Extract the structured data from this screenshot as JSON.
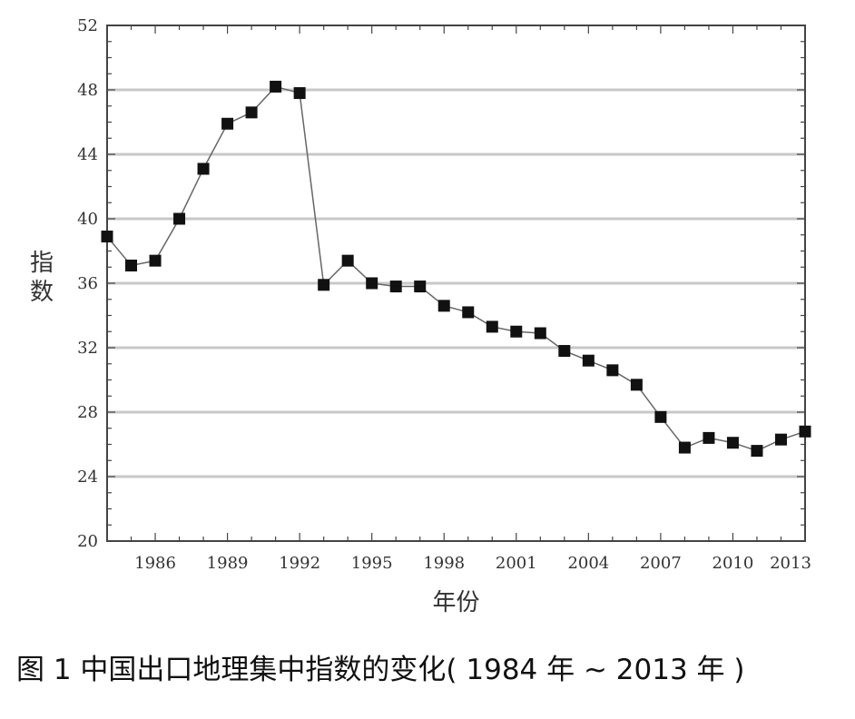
{
  "caption": "图 1  中国出口地理集中指数的变化( 1984 年 ~ 2013 年 )",
  "chart_data": {
    "type": "line",
    "xlabel": "年份",
    "ylabel": "指数",
    "xlim": [
      1984,
      2013
    ],
    "ylim": [
      20,
      52
    ],
    "x_ticks": [
      1986,
      1989,
      1992,
      1995,
      1998,
      2001,
      2004,
      2007,
      2010,
      2013
    ],
    "y_ticks": [
      20,
      24,
      28,
      32,
      36,
      40,
      44,
      48,
      52
    ],
    "grid": "horizontal",
    "marker": "square",
    "line_color": "#666666",
    "marker_color": "#111111",
    "series": [
      {
        "x": [
          1984,
          1985,
          1986,
          1987,
          1988,
          1989,
          1990,
          1991,
          1992,
          1993,
          1994,
          1995,
          1996,
          1997,
          1998,
          1999,
          2000,
          2001,
          2002,
          2003,
          2004,
          2005,
          2006,
          2007,
          2008,
          2009,
          2010,
          2011,
          2012,
          2013
        ],
        "values": [
          38.9,
          37.1,
          37.4,
          40.0,
          43.1,
          45.9,
          46.6,
          48.2,
          47.8,
          35.9,
          37.4,
          36.0,
          35.8,
          35.8,
          34.6,
          34.2,
          33.3,
          33.0,
          32.9,
          31.8,
          31.2,
          30.6,
          29.7,
          27.7,
          25.8,
          26.4,
          26.1,
          25.6,
          26.3,
          26.8
        ]
      }
    ]
  }
}
